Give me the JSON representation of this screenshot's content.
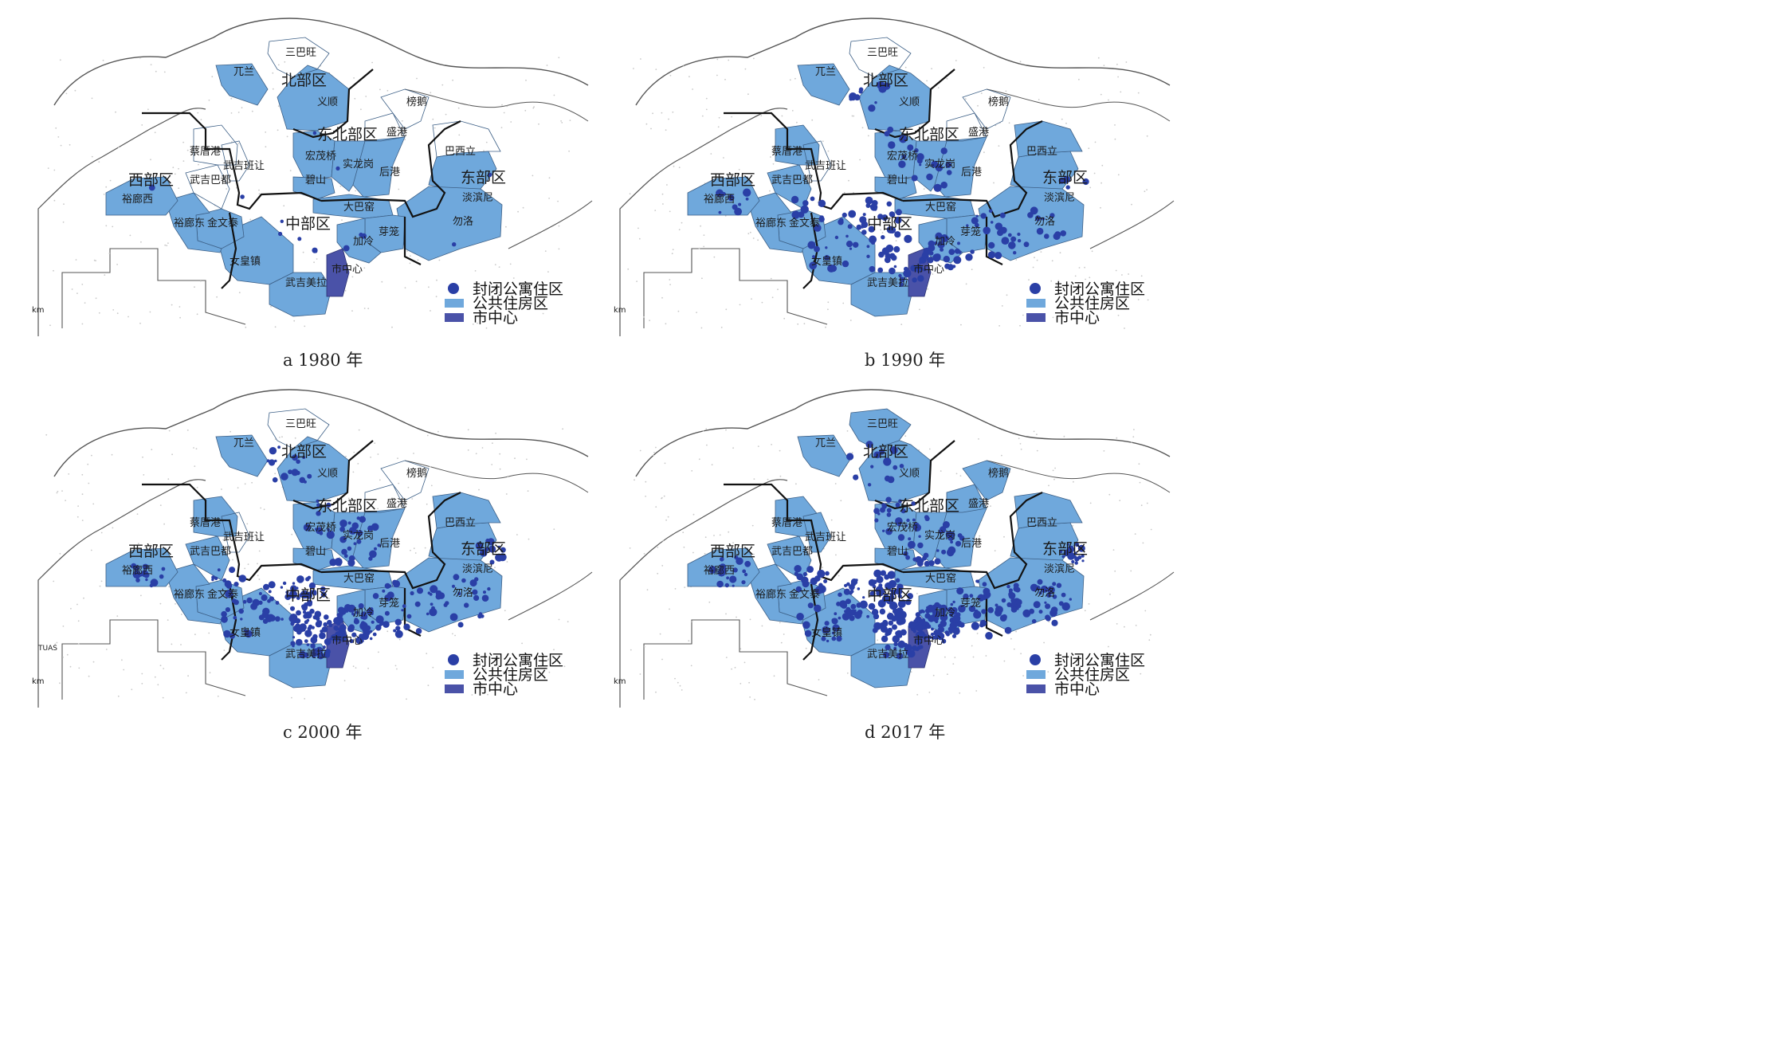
{
  "colors": {
    "public_housing": "#6fa8dc",
    "city_center": "#4a52a8",
    "gated_condo_dot": "#2a3fa6",
    "boundary": "#111111",
    "coast": "#555555"
  },
  "legend": {
    "gated_condo": "封闭公寓住区",
    "public_housing": "公共住房区",
    "city_center": "市中心"
  },
  "regions": {
    "north": "北部区",
    "northeast": "东北部区",
    "east": "东部区",
    "west": "西部区",
    "central": "中部区"
  },
  "towns": {
    "woodlands": "兀兰",
    "sembawang": "三巴旺",
    "yishun": "义顺",
    "punggol": "榜鹅",
    "sengkang": "盛港",
    "angmokio": "宏茂桥",
    "serangoon": "实龙岗",
    "hougang": "后港",
    "bishan": "碧山",
    "pasirris": "巴西立",
    "tampines": "淡滨尼",
    "bedok": "勿洛",
    "toapayoh": "大巴窑",
    "kallang": "加冷",
    "geylang": "芽笼",
    "queenstown": "女皇镇",
    "bukitmerah": "武吉美拉",
    "citycenter": "市中心",
    "choachukang": "蔡厝港",
    "bukitpanjang": "武吉班让",
    "bukitbatok": "武吉巴都",
    "jurongwest": "裕廊西",
    "jurongeast": "裕廊东",
    "clementi": "金文泰"
  },
  "panels": [
    {
      "id": "a",
      "caption": "a 1980 年",
      "year": 1980
    },
    {
      "id": "b",
      "caption": "b 1990 年",
      "year": 1990
    },
    {
      "id": "c",
      "caption": "c 2000 年",
      "year": 2000
    },
    {
      "id": "d",
      "caption": "d 2017 年",
      "year": 2017
    }
  ],
  "scale_text": "km",
  "extra_text": {
    "tuas": "TUAS"
  }
}
